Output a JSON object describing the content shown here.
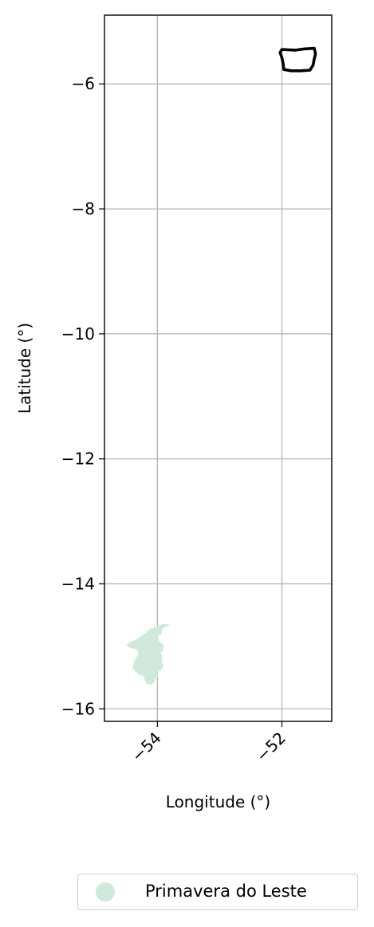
{
  "chart_data": {
    "type": "map",
    "xlabel": "Longitude (°)",
    "ylabel": "Latitude (°)",
    "xlim": [
      -54.85,
      -51.2
    ],
    "ylim": [
      -16.2,
      -4.9
    ],
    "xticks": [
      {
        "value": -54,
        "label": "−54"
      },
      {
        "value": -52,
        "label": "−52"
      }
    ],
    "yticks": [
      {
        "value": -6,
        "label": "−6"
      },
      {
        "value": -8,
        "label": "−8"
      },
      {
        "value": -10,
        "label": "−10"
      },
      {
        "value": -12,
        "label": "−12"
      },
      {
        "value": -14,
        "label": "−14"
      },
      {
        "value": -16,
        "label": "−16"
      }
    ],
    "grid": true,
    "legend_placement": "bottom-right, below axes",
    "layers": [
      {
        "id": "primavera-do-leste",
        "name": "Primavera do Leste",
        "kind": "filled-region",
        "color": "#cfeadc",
        "in_legend": true,
        "coords": [
          [
            -54.0,
            -14.68
          ],
          [
            -53.92,
            -14.64
          ],
          [
            -53.8,
            -14.65
          ],
          [
            -53.92,
            -14.72
          ],
          [
            -53.93,
            -14.8
          ],
          [
            -54.0,
            -14.84
          ],
          [
            -53.97,
            -14.92
          ],
          [
            -53.9,
            -14.98
          ],
          [
            -53.9,
            -15.05
          ],
          [
            -53.95,
            -15.1
          ],
          [
            -53.92,
            -15.18
          ],
          [
            -53.93,
            -15.25
          ],
          [
            -53.9,
            -15.32
          ],
          [
            -53.95,
            -15.38
          ],
          [
            -54.0,
            -15.42
          ],
          [
            -53.98,
            -15.5
          ],
          [
            -54.03,
            -15.52
          ],
          [
            -54.05,
            -15.58
          ],
          [
            -54.1,
            -15.62
          ],
          [
            -54.17,
            -15.6
          ],
          [
            -54.2,
            -15.55
          ],
          [
            -54.22,
            -15.48
          ],
          [
            -54.3,
            -15.45
          ],
          [
            -54.35,
            -15.4
          ],
          [
            -54.4,
            -15.35
          ],
          [
            -54.38,
            -15.27
          ],
          [
            -54.35,
            -15.2
          ],
          [
            -54.3,
            -15.12
          ],
          [
            -54.33,
            -15.05
          ],
          [
            -54.45,
            -15.02
          ],
          [
            -54.5,
            -14.97
          ],
          [
            -54.42,
            -14.92
          ],
          [
            -54.32,
            -14.88
          ],
          [
            -54.25,
            -14.82
          ],
          [
            -54.18,
            -14.78
          ],
          [
            -54.12,
            -14.72
          ],
          [
            -54.05,
            -14.7
          ]
        ]
      },
      {
        "id": "northern-outline",
        "name": "",
        "kind": "outline",
        "color": "#000000",
        "in_legend": false,
        "coords": [
          [
            -52.0,
            -5.45
          ],
          [
            -51.78,
            -5.46
          ],
          [
            -51.63,
            -5.44
          ],
          [
            -51.48,
            -5.43
          ],
          [
            -51.46,
            -5.52
          ],
          [
            -51.48,
            -5.6
          ],
          [
            -51.5,
            -5.7
          ],
          [
            -51.55,
            -5.78
          ],
          [
            -51.7,
            -5.79
          ],
          [
            -51.85,
            -5.79
          ],
          [
            -51.97,
            -5.77
          ],
          [
            -51.98,
            -5.68
          ],
          [
            -52.0,
            -5.58
          ],
          [
            -52.03,
            -5.5
          ]
        ]
      }
    ]
  }
}
